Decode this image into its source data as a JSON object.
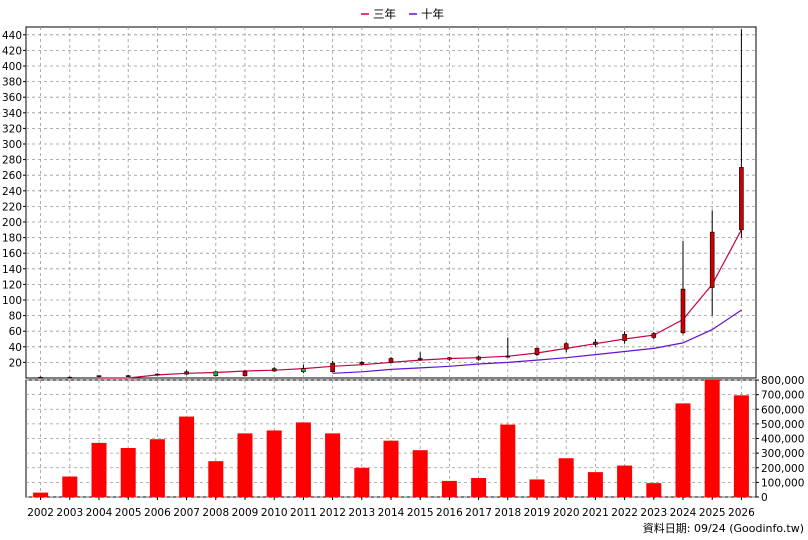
{
  "legend": {
    "items": [
      "三年",
      "十年"
    ]
  },
  "footer": {
    "text": "資料日期: 09/24  (Goodinfo.tw)"
  },
  "colors": {
    "up_candle": "#cc0000",
    "down_candle": "#33aa33",
    "three_year_line": "#cc0044",
    "ten_year_line": "#6611cc",
    "volume_bar": "#ff0000",
    "grid": "#999999"
  },
  "chart_data": [
    {
      "type": "candlestick",
      "title": "",
      "xlabel": "",
      "ylabel": "",
      "ylim": [
        0,
        450
      ],
      "yticks": [
        20,
        40,
        60,
        80,
        100,
        120,
        140,
        160,
        180,
        200,
        220,
        240,
        260,
        280,
        300,
        320,
        340,
        360,
        380,
        400,
        420,
        440
      ],
      "grid": true,
      "legend_position": "top-center",
      "categories": [
        "2002",
        "2003",
        "2004",
        "2005",
        "2006",
        "2007",
        "2008",
        "2009",
        "2010",
        "2011",
        "2012",
        "2013",
        "2014",
        "2015",
        "2016",
        "2017",
        "2018",
        "2019",
        "2020",
        "2021",
        "2022",
        "2023",
        "2024",
        "2025",
        "2026"
      ],
      "candles": [
        {
          "open": 1,
          "high": 2,
          "low": 0.5,
          "close": 1
        },
        {
          "open": 1,
          "high": 2,
          "low": 0.5,
          "close": 1
        },
        {
          "open": 2,
          "high": 3,
          "low": 1,
          "close": 3
        },
        {
          "open": 3,
          "high": 4,
          "low": 2,
          "close": 3
        },
        {
          "open": 4,
          "high": 6,
          "low": 3,
          "close": 5
        },
        {
          "open": 5,
          "high": 10,
          "low": 4,
          "close": 8
        },
        {
          "open": 8,
          "high": 9,
          "low": 2,
          "close": 3
        },
        {
          "open": 3,
          "high": 10,
          "low": 2,
          "close": 8
        },
        {
          "open": 9,
          "high": 14,
          "low": 8,
          "close": 12
        },
        {
          "open": 12,
          "high": 17,
          "low": 6,
          "close": 8
        },
        {
          "open": 8,
          "high": 22,
          "low": 7,
          "close": 19
        },
        {
          "open": 18,
          "high": 22,
          "low": 16,
          "close": 20
        },
        {
          "open": 20,
          "high": 27,
          "low": 19,
          "close": 25
        },
        {
          "open": 25,
          "high": 33,
          "low": 22,
          "close": 25
        },
        {
          "open": 24,
          "high": 27,
          "low": 22,
          "close": 26
        },
        {
          "open": 24,
          "high": 29,
          "low": 22,
          "close": 27
        },
        {
          "open": 27,
          "high": 52,
          "low": 26,
          "close": 28
        },
        {
          "open": 30,
          "high": 39,
          "low": 28,
          "close": 38
        },
        {
          "open": 37,
          "high": 46,
          "low": 33,
          "close": 44
        },
        {
          "open": 43,
          "high": 50,
          "low": 40,
          "close": 46
        },
        {
          "open": 48,
          "high": 60,
          "low": 44,
          "close": 56
        },
        {
          "open": 52,
          "high": 59,
          "low": 50,
          "close": 57
        },
        {
          "open": 58,
          "high": 176,
          "low": 56,
          "close": 114
        },
        {
          "open": 116,
          "high": 215,
          "low": 80,
          "close": 187
        },
        {
          "open": 190,
          "high": 447,
          "low": 180,
          "close": 270
        }
      ],
      "series": [
        {
          "name": "三年",
          "values": [
            null,
            null,
            0,
            0,
            4,
            6,
            7,
            9,
            10,
            12,
            15,
            17,
            20,
            23,
            25,
            26,
            28,
            32,
            38,
            44,
            50,
            55,
            75,
            120,
            190
          ]
        },
        {
          "name": "十年",
          "values": [
            null,
            null,
            null,
            null,
            null,
            null,
            null,
            null,
            null,
            null,
            6,
            8,
            11,
            13,
            15,
            18,
            20,
            23,
            26,
            30,
            34,
            38,
            45,
            62,
            87
          ]
        }
      ]
    },
    {
      "type": "bar",
      "title": "",
      "xlabel": "",
      "ylabel": "",
      "ylim": [
        0,
        800000
      ],
      "yticks": [
        0,
        100000,
        200000,
        300000,
        400000,
        500000,
        600000,
        700000,
        800000
      ],
      "ytick_labels": [
        "0",
        "100,000",
        "200,000",
        "300,000",
        "400,000",
        "500,000",
        "600,000",
        "700,000",
        "800,000"
      ],
      "grid": true,
      "categories": [
        "2002",
        "2003",
        "2004",
        "2005",
        "2006",
        "2007",
        "2008",
        "2009",
        "2010",
        "2011",
        "2012",
        "2013",
        "2014",
        "2015",
        "2016",
        "2017",
        "2018",
        "2019",
        "2020",
        "2021",
        "2022",
        "2023",
        "2024",
        "2025",
        "2026"
      ],
      "values": [
        30000,
        140000,
        370000,
        335000,
        395000,
        550000,
        245000,
        435000,
        455000,
        510000,
        435000,
        200000,
        385000,
        320000,
        110000,
        130000,
        495000,
        120000,
        265000,
        170000,
        215000,
        95000,
        640000,
        805000,
        695000
      ]
    }
  ]
}
